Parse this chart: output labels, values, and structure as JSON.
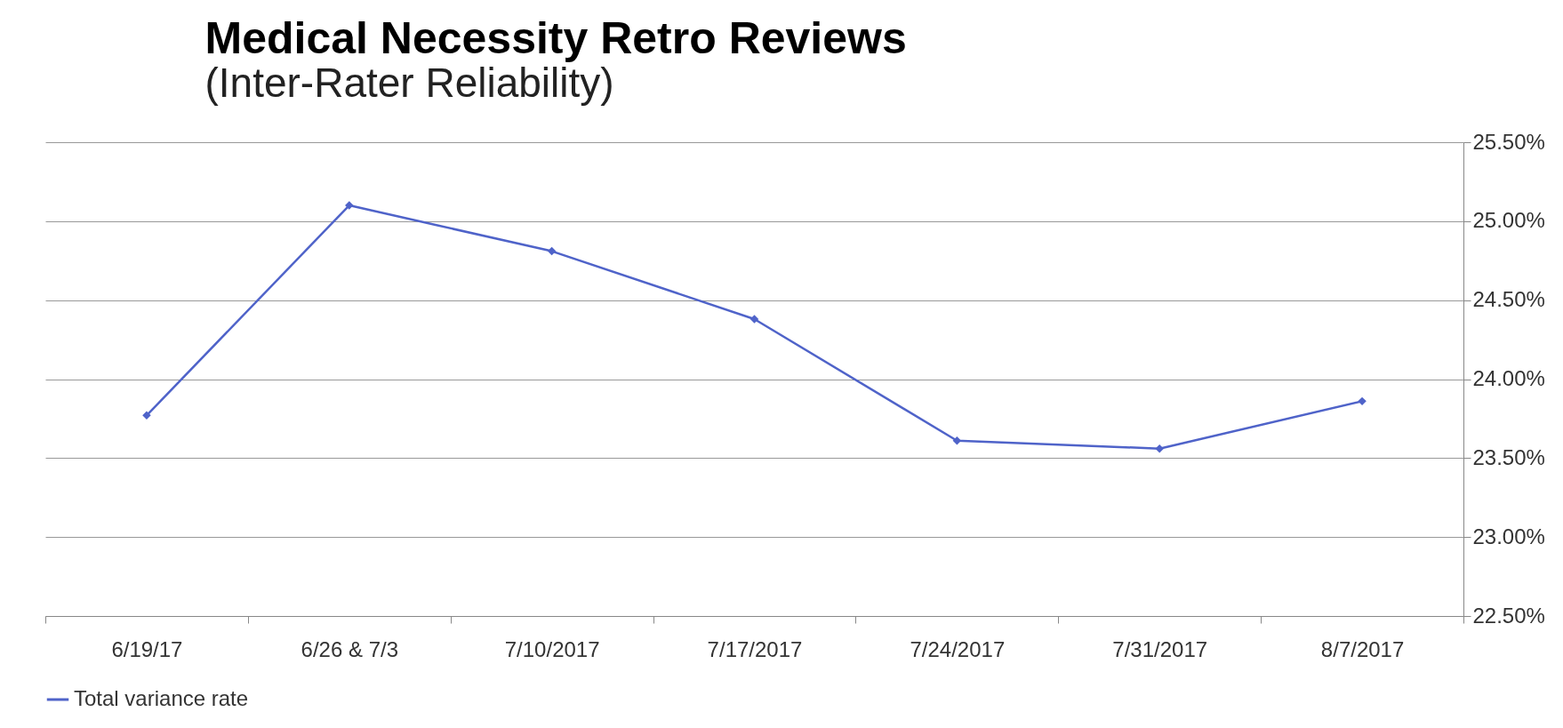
{
  "chart_data": {
    "type": "line",
    "title": "Medical Necessity Retro Reviews",
    "subtitle": "(Inter-Rater Reliability)",
    "categories": [
      "6/19/17",
      "6/26 & 7/3",
      "7/10/2017",
      "7/17/2017",
      "7/24/2017",
      "7/31/2017",
      "8/7/2017"
    ],
    "series": [
      {
        "name": "Total variance rate",
        "color": "#4f63c9",
        "values": [
          23.77,
          25.1,
          24.81,
          24.38,
          23.61,
          23.56,
          23.86
        ]
      }
    ],
    "ylim": [
      22.5,
      25.5
    ],
    "yticks": [
      {
        "value": 22.5,
        "label": "22.50%"
      },
      {
        "value": 23,
        "label": "23.00%"
      },
      {
        "value": 23.5,
        "label": "23.50%"
      },
      {
        "value": 24,
        "label": "24.00%"
      },
      {
        "value": 24.5,
        "label": "24.50%"
      },
      {
        "value": 25,
        "label": "25.00%"
      },
      {
        "value": 25.5,
        "label": "25.50%"
      }
    ],
    "grid": "y",
    "legend": "bottom",
    "marker": "diamond",
    "line_style": "solid"
  }
}
